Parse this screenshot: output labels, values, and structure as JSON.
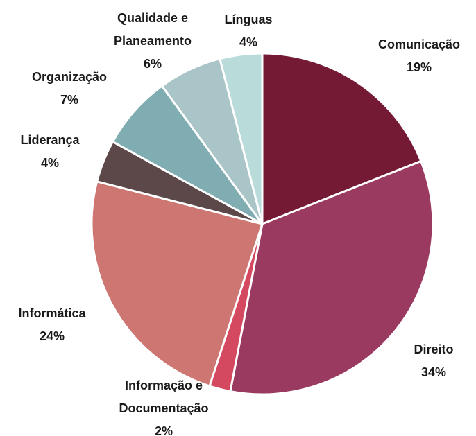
{
  "chart_data": {
    "type": "pie",
    "categories": [
      "Comunicação",
      "Direito",
      "Informação e Documentação",
      "Informática",
      "Liderança",
      "Organização",
      "Qualidade e Planeamento",
      "Línguas"
    ],
    "values": [
      19,
      34,
      2,
      24,
      4,
      7,
      6,
      4
    ],
    "value_labels": [
      "19%",
      "34%",
      "2%",
      "24%",
      "4%",
      "7%",
      "6%",
      "4%"
    ],
    "colors": [
      "#741a35",
      "#9a3a60",
      "#d4495f",
      "#cd7672",
      "#5c4848",
      "#7fadb2",
      "#a9c5c8",
      "#b9dbd9"
    ]
  }
}
